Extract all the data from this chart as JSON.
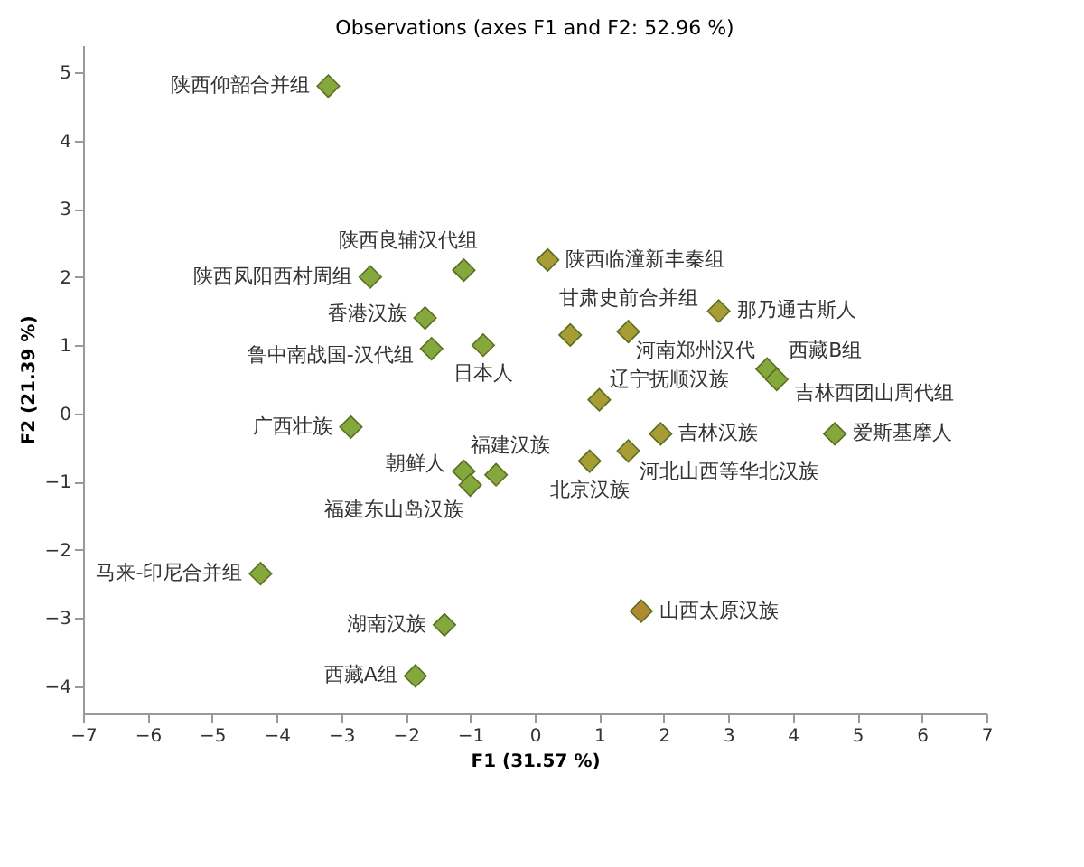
{
  "chart_data": {
    "type": "scatter",
    "title": "Observations (axes F1 and F2: 52.96 %)",
    "xlabel": "F1 (31.57 %)",
    "ylabel": "F2 (21.39 %)",
    "xlim": [
      -7,
      7
    ],
    "xticks": [
      -7,
      -6,
      -5,
      -4,
      -3,
      -2,
      -1,
      0,
      1,
      2,
      3,
      4,
      5,
      6,
      7
    ],
    "ylim": [
      -4.4,
      5.4
    ],
    "yticks": [
      -4,
      -3,
      -2,
      -1,
      0,
      1,
      2,
      3,
      4,
      5
    ],
    "grid": false,
    "marker": "diamond",
    "series": [
      {
        "x": [
          -3.2,
          -2.55,
          -1.1,
          -1.7,
          -1.6,
          -0.8,
          0.2,
          0.55,
          1.45,
          2.85,
          3.6,
          3.75,
          1.0,
          1.95,
          1.45,
          0.85,
          4.65,
          1.65,
          -2.85,
          -1.1,
          -1.0,
          -0.6,
          -4.25,
          -1.4,
          -1.85
        ],
        "values": [
          4.8,
          2.0,
          2.1,
          1.4,
          0.95,
          1.0,
          2.25,
          1.15,
          1.2,
          1.5,
          0.65,
          0.5,
          0.2,
          -0.3,
          -0.55,
          -0.7,
          -0.3,
          -2.9,
          -0.2,
          -0.85,
          -1.05,
          -0.9,
          -2.35,
          -3.1,
          -3.85
        ],
        "colors": [
          "#84a83c",
          "#84a83c",
          "#84a83c",
          "#84a83c",
          "#84a83c",
          "#84a83c",
          "#a89c34",
          "#a89c34",
          "#a89c34",
          "#a89c34",
          "#84a83c",
          "#84a83c",
          "#a89c34",
          "#a89c34",
          "#a89c34",
          "#a89c34",
          "#84a83c",
          "#b08a30",
          "#84a83c",
          "#84a83c",
          "#84a83c",
          "#84a83c",
          "#84a83c",
          "#84a83c",
          "#84a83c"
        ],
        "value_labels": [
          "陕西仰韶合并组",
          "陕西凤阳西村周组",
          "陕西良辅汉代组",
          "香港汉族",
          "鲁中南战国-汉代组",
          "日本人",
          "陕西临潼新丰秦组",
          "甘肃史前合并组",
          "河南郑州汉代",
          "那乃通古斯人",
          "西藏B组",
          "吉林西团山周代组",
          "辽宁抚顺汉族",
          "吉林汉族",
          "河北山西等华北汉族",
          "北京汉族",
          "爱斯基摩人",
          "山西太原汉族",
          "广西壮族",
          "朝鲜人",
          "福建东山岛汉族",
          "福建汉族",
          "马来-印尼合并组",
          "湖南汉族",
          "西藏A组"
        ]
      }
    ]
  }
}
